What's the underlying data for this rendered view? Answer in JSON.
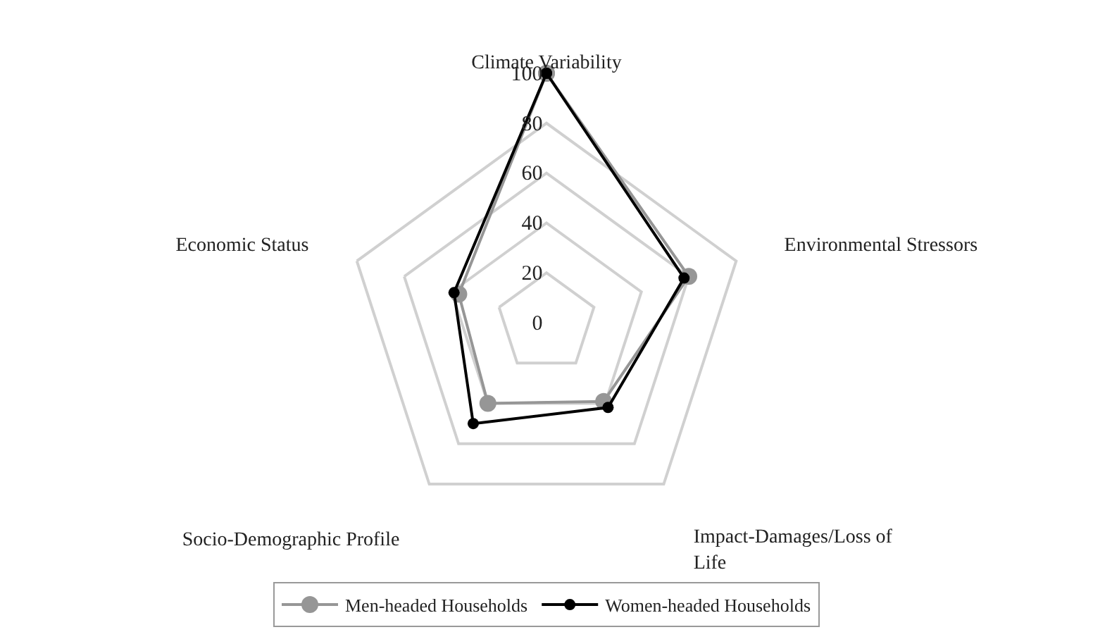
{
  "chart_data": {
    "type": "radar",
    "categories": [
      "Climate Variability",
      "Environmental Stressors",
      "Impact-Damages/Loss of Life",
      "Socio-Demographic Profile",
      "Economic Status"
    ],
    "series": [
      {
        "name": "Men-headed Households",
        "color": "#969696",
        "values": [
          100,
          60,
          39,
          40,
          37
        ]
      },
      {
        "name": "Women-headed Households",
        "color": "#000000",
        "values": [
          100,
          58,
          42,
          50,
          39
        ]
      }
    ],
    "ylim": [
      0,
      100
    ],
    "yticks": [
      0,
      20,
      40,
      60,
      80,
      100
    ],
    "grid": true,
    "legend": "bottom",
    "marker": "circle",
    "line_style": "solid"
  }
}
